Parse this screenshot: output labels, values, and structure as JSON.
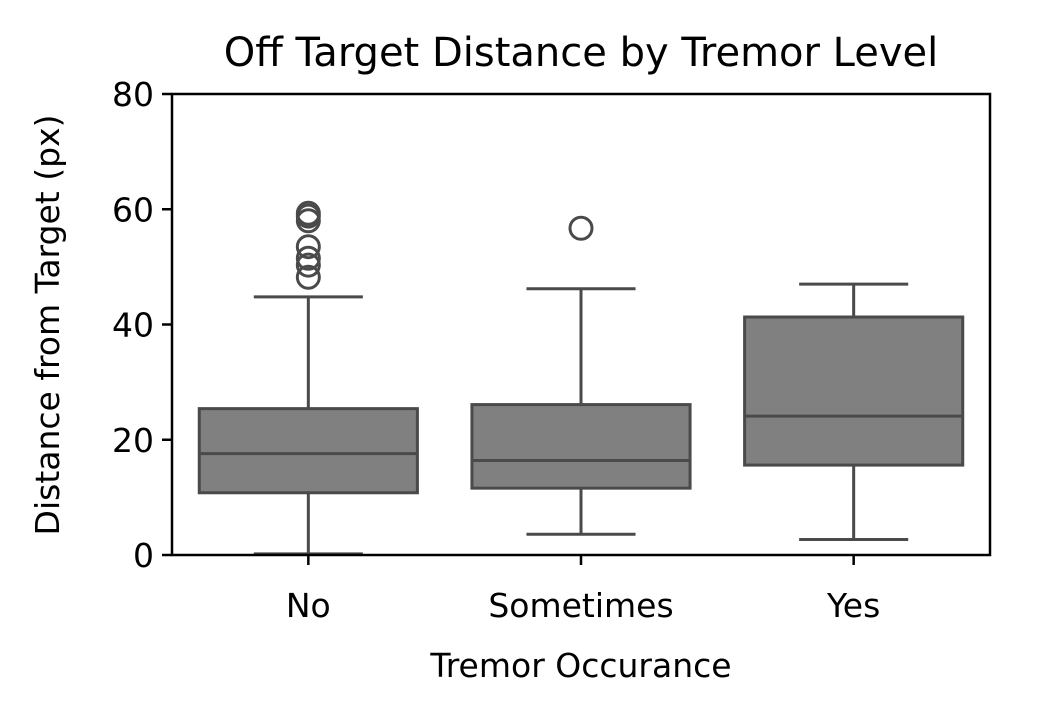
{
  "chart_data": {
    "type": "box",
    "title": "Off Target Distance by Tremor Level",
    "xlabel": "Tremor Occurance",
    "ylabel": "Distance from Target (px)",
    "ylim": [
      0,
      80
    ],
    "yticks": [
      0,
      20,
      40,
      60,
      80
    ],
    "grid": false,
    "categories": [
      "No",
      "Sometimes",
      "Yes"
    ],
    "boxes": [
      {
        "category": "No",
        "whisker_low": 0.2,
        "q1": 10.8,
        "median": 17.6,
        "q3": 25.4,
        "whisker_high": 44.8,
        "outliers": [
          48.2,
          50.3,
          51.5,
          53.5,
          58.0,
          58.8,
          59.3
        ]
      },
      {
        "category": "Sometimes",
        "whisker_low": 3.6,
        "q1": 11.6,
        "median": 16.4,
        "q3": 26.1,
        "whisker_high": 46.2,
        "outliers": [
          56.7
        ]
      },
      {
        "category": "Yes",
        "whisker_low": 2.7,
        "q1": 15.6,
        "median": 24.1,
        "q3": 41.3,
        "whisker_high": 47.0,
        "outliers": []
      }
    ],
    "colors": {
      "box_fill": "#808080",
      "box_edge": "#4a4a4a",
      "axis": "#000000"
    }
  }
}
